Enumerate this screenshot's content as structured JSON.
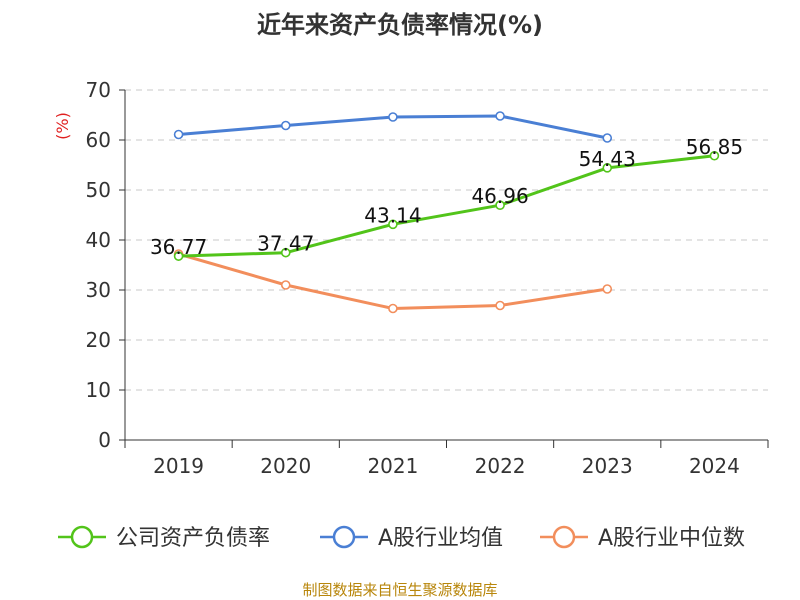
{
  "chart_data": {
    "type": "line",
    "title": "近年来资产负债率情况(%)",
    "ylabel": "(%)",
    "xlabel": "",
    "categories": [
      "2019",
      "2020",
      "2021",
      "2022",
      "2023",
      "2024"
    ],
    "ylim": [
      0,
      70
    ],
    "yticks": [
      0,
      10,
      20,
      30,
      40,
      50,
      60,
      70
    ],
    "grid": true,
    "legend": "bottom",
    "series": [
      {
        "name": "公司资产负债率",
        "color": "#52c41a",
        "values": [
          36.77,
          37.47,
          43.14,
          46.96,
          54.43,
          56.85
        ],
        "labels": [
          "36.77",
          "37.47",
          "43.14",
          "46.96",
          "54.43",
          "56.85"
        ]
      },
      {
        "name": "A股行业均值",
        "color": "#4a7fd4",
        "values": [
          61.1,
          62.9,
          64.6,
          64.8,
          60.4,
          null
        ]
      },
      {
        "name": "A股行业中位数",
        "color": "#f28e5c",
        "values": [
          37.2,
          31.0,
          26.3,
          26.9,
          30.2,
          null
        ]
      }
    ]
  },
  "unit_color": "#e02020",
  "source": {
    "text": "制图数据来自恒生聚源数据库",
    "color": "#b8860b"
  }
}
